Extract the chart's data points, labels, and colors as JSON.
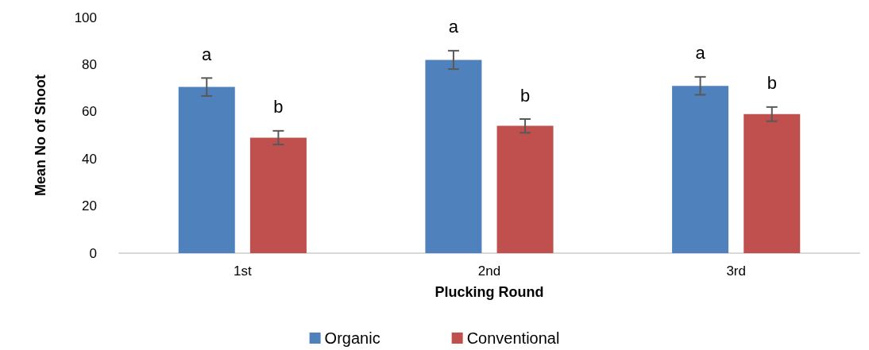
{
  "chart_data": {
    "type": "bar",
    "xlabel": "Plucking Round",
    "ylabel": "Mean No of Shoot",
    "categories": [
      "1st",
      "2nd",
      "3rd"
    ],
    "series": [
      {
        "name": "Organic",
        "color": "#4f81bd",
        "values": [
          70.5,
          82,
          71
        ],
        "errors": [
          3.8,
          3.9,
          3.8
        ]
      },
      {
        "name": "Conventional",
        "color": "#c0504d",
        "values": [
          49,
          54,
          59
        ],
        "errors": [
          2.9,
          2.9,
          3
        ]
      }
    ],
    "ylim": [
      0,
      100
    ],
    "yticks": [
      0,
      20,
      40,
      60,
      80,
      100
    ],
    "grid": false,
    "legend": "bottom",
    "annotations": [
      "a",
      "b",
      "a",
      "b",
      "a",
      "b"
    ]
  }
}
